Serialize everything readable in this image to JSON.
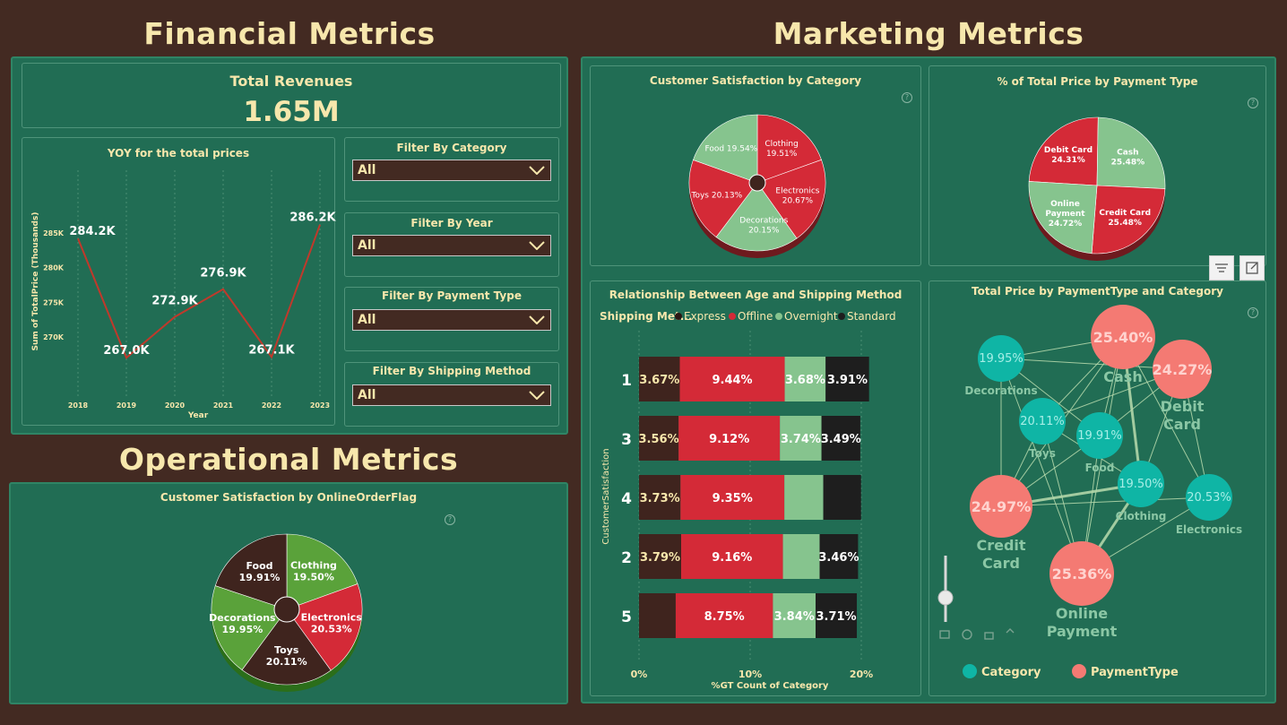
{
  "sections": {
    "financial": "Financial Metrics",
    "marketing": "Marketing Metrics",
    "operational": "Operational Metrics"
  },
  "kpi": {
    "label": "Total Revenues",
    "value": "1.65M"
  },
  "yoy": {
    "title": "YOY for the total prices",
    "ylabel": "Sum of TotalPrice (Thousands)",
    "xlabel": "Year",
    "yticks": [
      "285K",
      "280K",
      "275K",
      "270K"
    ],
    "xticks": [
      "2018",
      "2019",
      "2020",
      "2021",
      "2022",
      "2023"
    ],
    "labels": [
      "284.2K",
      "267.0K",
      "272.9K",
      "276.9K",
      "267.1K",
      "286.2K"
    ]
  },
  "filters": [
    {
      "label": "Filter By Category",
      "value": "All"
    },
    {
      "label": "Filter By Year",
      "value": "All"
    },
    {
      "label": "Filter By Payment Type",
      "value": "All"
    },
    {
      "label": "Filter By Shipping Method",
      "value": "All"
    }
  ],
  "pie_category": {
    "title": "Customer Satisfaction by Category",
    "slices": [
      {
        "name": "Clothing",
        "pct": "19.51%"
      },
      {
        "name": "Electronics",
        "pct": "20.67%"
      },
      {
        "name": "Decorations",
        "pct": "20.15%"
      },
      {
        "name": "Toys",
        "pct": "20.13%"
      },
      {
        "name": "Food",
        "pct": "19.54%"
      }
    ]
  },
  "pie_payment": {
    "title": "% of Total Price by Payment Type",
    "slices": [
      {
        "name": "Debit Card",
        "pct": "24.31%"
      },
      {
        "name": "Cash",
        "pct": "25.48%"
      },
      {
        "name": "Credit Card",
        "pct": "25.48%"
      },
      {
        "name": "Online Payment",
        "name1": "Online",
        "name2": "Payment",
        "pct": "24.72%"
      }
    ]
  },
  "bar_chart": {
    "title": "Relationship Between Age and Shipping Method",
    "legend_title": "Shipping Met...",
    "legend": [
      "Express",
      "Offline",
      "Overnight",
      "Standard"
    ],
    "ylabel": "CustomerSatisfaction",
    "xlabel": "%GT Count of Category",
    "xticks": [
      "0%",
      "10%",
      "20%"
    ]
  },
  "network": {
    "title": "Total Price by PaymentType and Category",
    "nodes": [
      {
        "label": "Decorations",
        "value": "19.95%"
      },
      {
        "label": "Cash",
        "value": "25.40%"
      },
      {
        "label": "Debit Card",
        "l1": "Debit",
        "l2": "Card",
        "value": "24.27%"
      },
      {
        "label": "Toys",
        "value": "20.11%"
      },
      {
        "label": "Food",
        "value": "19.91%"
      },
      {
        "label": "Clothing",
        "value": "19.50%"
      },
      {
        "label": "Electronics",
        "value": "20.53%"
      },
      {
        "label": "Credit Card",
        "l1": "Credit",
        "l2": "Card",
        "value": "24.97%"
      },
      {
        "label": "Online Payment",
        "l1": "Online",
        "l2": "Payment",
        "value": "25.36%"
      }
    ],
    "legend": [
      "Category",
      "PaymentType"
    ]
  },
  "pie_online": {
    "title": "Customer Satisfaction by OnlineOrderFlag",
    "slices": [
      {
        "name": "Clothing",
        "pct": "19.50%"
      },
      {
        "name": "Electronics",
        "pct": "20.53%"
      },
      {
        "name": "Toys",
        "pct": "20.11%"
      },
      {
        "name": "Decorations",
        "pct": "19.95%"
      },
      {
        "name": "Food",
        "pct": "19.91%"
      }
    ]
  },
  "colors": {
    "background": "#432a22",
    "panel": "#216d54",
    "title": "#f7e7ac",
    "red": "#d42a37",
    "light_green": "#86c48e",
    "dark_brown": "#3f241e",
    "black": "#1e1e1e",
    "teal": "#0fb5a5",
    "salmon": "#f47a73",
    "olive_green": "#5aa23a"
  },
  "chart_data": [
    {
      "type": "line",
      "title": "YOY for the total prices",
      "xlabel": "Year",
      "ylabel": "Sum of TotalPrice (Thousands)",
      "x": [
        2018,
        2019,
        2020,
        2021,
        2022,
        2023
      ],
      "series": [
        {
          "values": [
            284.2,
            267.0,
            272.9,
            276.9,
            267.1,
            286.2
          ]
        }
      ],
      "ylim": [
        267,
        287
      ]
    },
    {
      "type": "pie",
      "title": "Customer Satisfaction by Category",
      "categories": [
        "Clothing",
        "Electronics",
        "Decorations",
        "Toys",
        "Food"
      ],
      "values": [
        19.51,
        20.67,
        20.15,
        20.13,
        19.54
      ]
    },
    {
      "type": "pie",
      "title": "% of Total Price by Payment Type",
      "categories": [
        "Debit Card",
        "Cash",
        "Credit Card",
        "Online Payment"
      ],
      "values": [
        24.31,
        25.48,
        25.48,
        24.72
      ]
    },
    {
      "type": "bar",
      "title": "Relationship Between Age and Shipping Method",
      "xlabel": "%GT Count of Category",
      "ylabel": "CustomerSatisfaction",
      "categories": [
        "1",
        "3",
        "4",
        "2",
        "5"
      ],
      "series": [
        {
          "name": "Express",
          "values": [
            3.67,
            3.56,
            3.73,
            3.79,
            3.3
          ],
          "labels": [
            "3.67%",
            "3.56%",
            "3.73%",
            "3.79%",
            ""
          ]
        },
        {
          "name": "Offline",
          "values": [
            9.44,
            9.12,
            9.35,
            9.16,
            8.75
          ],
          "labels": [
            "9.44%",
            "9.12%",
            "9.35%",
            "9.16%",
            "8.75%"
          ]
        },
        {
          "name": "Overnight",
          "values": [
            3.68,
            3.74,
            3.5,
            3.3,
            3.84
          ],
          "labels": [
            "3.68%",
            "3.74%",
            "",
            "",
            "3.84%"
          ]
        },
        {
          "name": "Standard",
          "values": [
            3.91,
            3.49,
            3.4,
            3.46,
            3.71
          ],
          "labels": [
            "3.91%",
            "3.49%",
            "",
            "3.46%",
            "3.71%"
          ]
        }
      ],
      "xlim": [
        0,
        20
      ]
    },
    {
      "type": "pie",
      "title": "Customer Satisfaction by OnlineOrderFlag",
      "categories": [
        "Clothing",
        "Electronics",
        "Toys",
        "Decorations",
        "Food"
      ],
      "values": [
        19.5,
        20.53,
        20.11,
        19.95,
        19.91
      ]
    }
  ]
}
